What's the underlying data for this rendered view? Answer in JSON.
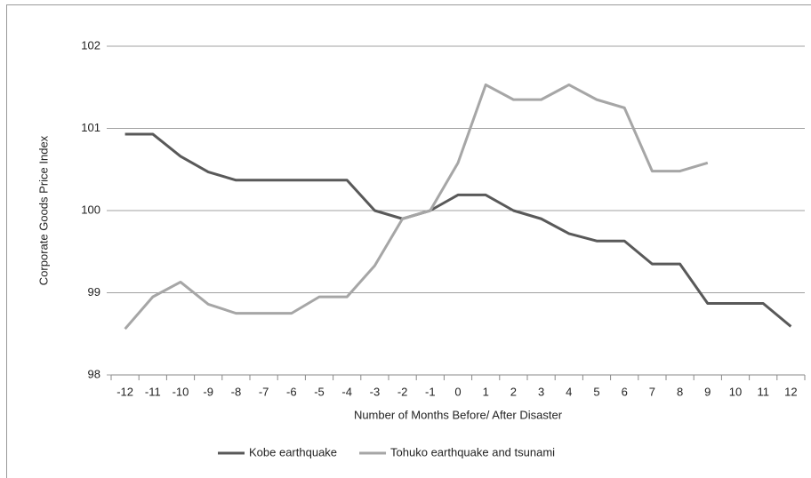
{
  "chart_data": {
    "type": "line",
    "y_label": "Corporate Goods Price Index",
    "x_label": "Number of Months Before/ After Disaster",
    "categories": [
      "-12",
      "-11",
      "-10",
      "-9",
      "-8",
      "-7",
      "-6",
      "-5",
      "-4",
      "-3",
      "-2",
      "-1",
      "0",
      "1",
      "2",
      "3",
      "4",
      "5",
      "6",
      "7",
      "8",
      "9",
      "10",
      "11",
      "12"
    ],
    "series": [
      {
        "name": "Kobe earthquake",
        "color": "#595959",
        "values": [
          100.93,
          100.93,
          100.66,
          100.47,
          100.37,
          100.37,
          100.37,
          100.37,
          100.37,
          100.0,
          99.9,
          100.0,
          100.19,
          100.19,
          100.0,
          99.9,
          99.72,
          99.63,
          99.63,
          99.35,
          99.35,
          98.87,
          98.87,
          98.87,
          98.59
        ]
      },
      {
        "name": "Tohuko earthquake and tsunami",
        "color": "#a6a6a6",
        "values": [
          98.56,
          98.95,
          99.13,
          98.86,
          98.75,
          98.75,
          98.75,
          98.95,
          98.95,
          99.33,
          99.9,
          100.0,
          100.58,
          101.53,
          101.35,
          101.35,
          101.53,
          101.35,
          101.25,
          100.48,
          100.48,
          100.58,
          null,
          null,
          null
        ]
      }
    ],
    "ylim": [
      98,
      102
    ],
    "yticks": [
      98,
      99,
      100,
      101,
      102
    ],
    "grid": true,
    "legend": "bottom"
  }
}
